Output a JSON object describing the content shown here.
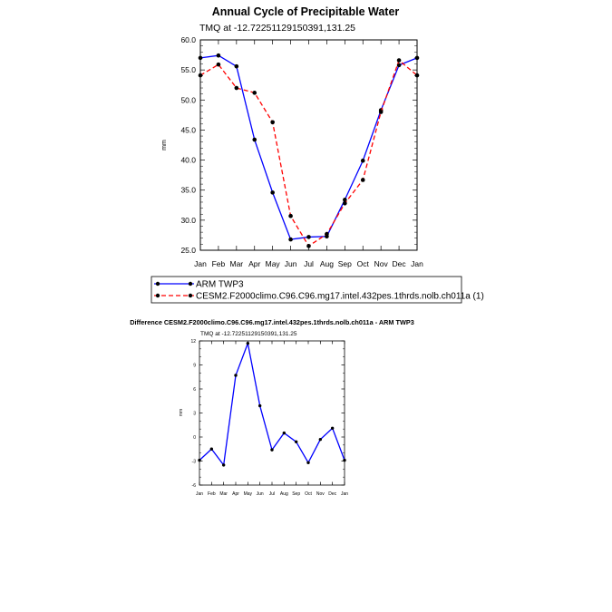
{
  "chart_data": [
    {
      "type": "line",
      "title": "Annual Cycle of Precipitable Water",
      "subtitle": "TMQ at -12.72251129150391,131.25",
      "xlabel": "",
      "ylabel": "mm",
      "categories": [
        "Jan",
        "Feb",
        "Mar",
        "Apr",
        "May",
        "Jun",
        "Jul",
        "Aug",
        "Sep",
        "Oct",
        "Nov",
        "Dec",
        "Jan"
      ],
      "ylim": [
        25,
        60
      ],
      "yticks": [
        "25.0",
        "30.0",
        "35.0",
        "40.0",
        "45.0",
        "50.0",
        "55.0",
        "60.0"
      ],
      "ytick_values": [
        25,
        30,
        35,
        40,
        45,
        50,
        55,
        60
      ],
      "series": [
        {
          "name": "ARM TWP3",
          "color": "#0000ff",
          "dash": "solid",
          "values": [
            57.0,
            57.4,
            55.6,
            43.4,
            34.6,
            26.8,
            27.2,
            27.3,
            33.4,
            39.9,
            48.3,
            55.8,
            57.0
          ]
        },
        {
          "name": "CESM2.F2000climo.C96.C96.mg17.intel.432pes.1thrds.nolb.ch011a (1)",
          "color": "#ff0000",
          "dash": "dashed",
          "values": [
            54.1,
            55.9,
            52.0,
            51.2,
            46.3,
            30.7,
            25.7,
            27.7,
            32.8,
            36.7,
            48.0,
            56.6,
            54.1
          ]
        }
      ],
      "legend": "below"
    },
    {
      "type": "line",
      "title": "Difference CESM2.F2000climo.C96.C96.mg17.intel.432pes.1thrds.nolb.ch011a - ARM TWP3",
      "subtitle": "TMQ at -12.72251129150391,131.25",
      "xlabel": "",
      "ylabel": "mm",
      "categories": [
        "Jan",
        "Feb",
        "Mar",
        "Apr",
        "May",
        "Jun",
        "Jul",
        "Aug",
        "Sep",
        "Oct",
        "Nov",
        "Dec",
        "Jan"
      ],
      "ylim": [
        -6,
        12
      ],
      "yticks": [
        "-6",
        "-3",
        "0",
        "3",
        "6",
        "9",
        "12"
      ],
      "ytick_values": [
        -6,
        -3,
        0,
        3,
        6,
        9,
        12
      ],
      "series": [
        {
          "name": "Difference",
          "color": "#0000ff",
          "dash": "solid",
          "values": [
            -2.9,
            -1.5,
            -3.5,
            7.7,
            11.7,
            3.9,
            -1.6,
            0.5,
            -0.6,
            -3.2,
            -0.3,
            1.1,
            -2.9
          ]
        }
      ]
    }
  ]
}
